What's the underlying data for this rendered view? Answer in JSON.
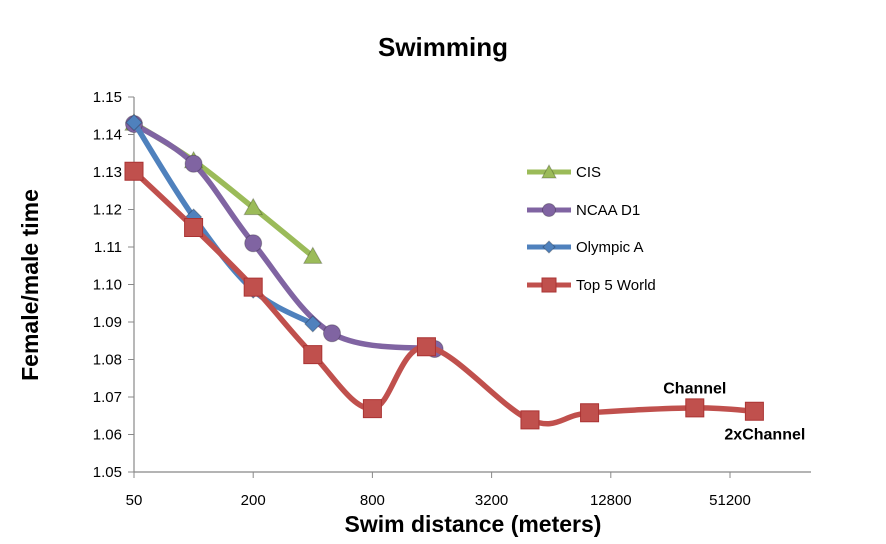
{
  "chart_data": {
    "type": "line",
    "title": "Swimming",
    "xlabel": "Swim distance (meters)",
    "ylabel": "Female/male time",
    "x_scale": "log2",
    "xlim": [
      50,
      130000
    ],
    "ylim": [
      1.05,
      1.15
    ],
    "x_ticks": [
      50,
      200,
      800,
      3200,
      12800,
      51200
    ],
    "y_ticks": [
      "1.05",
      "1.06",
      "1.07",
      "1.08",
      "1.09",
      "1.10",
      "1.11",
      "1.12",
      "1.13",
      "1.14",
      "1.15"
    ],
    "grid": false,
    "smoothed": true,
    "legend_position": "right",
    "series": [
      {
        "name": "CIS",
        "color": "#9BBB59",
        "marker": "triangle",
        "x": [
          50,
          100,
          200,
          400
        ],
        "y": [
          1.143,
          1.133,
          1.1205,
          1.1075
        ]
      },
      {
        "name": "NCAA D1",
        "color": "#8064A2",
        "marker": "circle",
        "x": [
          50,
          100,
          200,
          500,
          1650
        ],
        "y": [
          1.1428,
          1.1322,
          1.111,
          1.087,
          1.0828
        ]
      },
      {
        "name": "Olympic A",
        "color": "#4F81BD",
        "marker": "diamond",
        "x": [
          50,
          100,
          200,
          400
        ],
        "y": [
          1.1432,
          1.118,
          1.0985,
          1.0895
        ]
      },
      {
        "name": "Top 5 World",
        "color": "#C0504D",
        "marker": "square",
        "x": [
          50,
          100,
          200,
          400,
          800,
          1500,
          5000,
          10000,
          34000,
          68000
        ],
        "y": [
          1.1302,
          1.1152,
          1.0993,
          1.0813,
          1.0669,
          1.0834,
          1.0639,
          1.0658,
          1.0671,
          1.0662
        ]
      }
    ],
    "annotations": [
      {
        "text": "Channel",
        "x": 34000,
        "y": 1.0725
      },
      {
        "text": "2xChannel",
        "x": 68000,
        "y": 1.0603
      }
    ]
  }
}
